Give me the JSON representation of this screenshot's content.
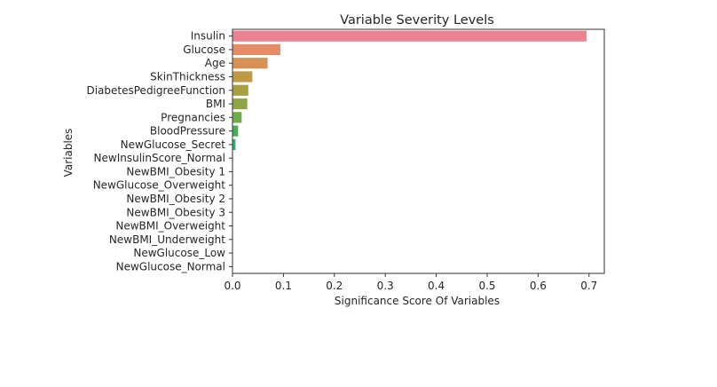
{
  "chart_data": {
    "type": "bar",
    "orientation": "horizontal",
    "title": "Variable Severity Levels",
    "xlabel": "Significance Score Of Variables",
    "ylabel": "Variables",
    "xlim": [
      0,
      0.73
    ],
    "xticks": [
      "0.0",
      "0.1",
      "0.2",
      "0.3",
      "0.4",
      "0.5",
      "0.6",
      "0.7"
    ],
    "grid": false,
    "legend": "none",
    "categories": [
      "Insulin",
      "Glucose",
      "Age",
      "SkinThickness",
      "DiabetesPedigreeFunction",
      "BMI",
      "Pregnancies",
      "BloodPressure",
      "NewGlucose_Secret",
      "NewInsulinScore_Normal",
      "NewBMI_Obesity 1",
      "NewGlucose_Overweight",
      "NewBMI_Obesity 2",
      "NewBMI_Obesity 3",
      "NewBMI_Overweight",
      "NewBMI_Underweight",
      "NewGlucose_Low",
      "NewGlucose_Normal"
    ],
    "values": [
      0.695,
      0.094,
      0.069,
      0.039,
      0.031,
      0.029,
      0.018,
      0.011,
      0.006,
      0.001,
      0.001,
      0.001,
      0.0005,
      0.0005,
      0.0005,
      0.0003,
      0.0002,
      0.0001
    ],
    "colors": [
      "#e8838f",
      "#e68d68",
      "#d99255",
      "#be9a45",
      "#a89f43",
      "#91a547",
      "#6fae47",
      "#45b055",
      "#34ae7a",
      "#35ab90",
      "#37a99d",
      "#38a7ab",
      "#3aa5b9",
      "#3fa1cd",
      "#6f97e9",
      "#9f8bea",
      "#c37ee8",
      "#e272d8"
    ]
  }
}
